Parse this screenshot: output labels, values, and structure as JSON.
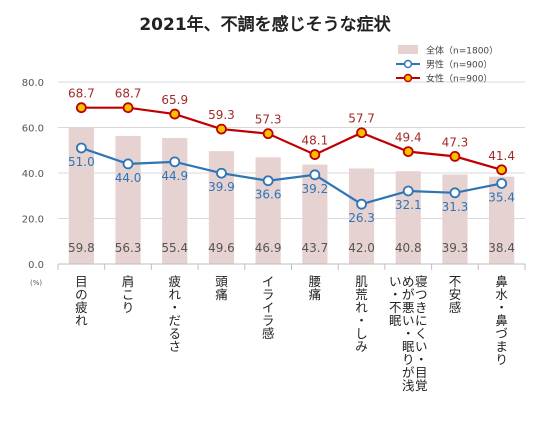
{
  "chart_data": {
    "type": "bar",
    "title": "2021年、不調を感じそうな症状",
    "unit_label": "(%)",
    "ylim": [
      0,
      80
    ],
    "yticks": [
      "0.0",
      "20.0",
      "40.0",
      "60.0",
      "80.0"
    ],
    "grid": true,
    "legend_position": "top-right",
    "categories": [
      "目の疲れ",
      "肩こり",
      "疲れ・だるさ",
      "頭痛",
      "イライラ感",
      "腰痛",
      "肌荒れ・しみ",
      "寝つきにくい・目覚めが悪い・眠りが浅い・不眠",
      "不安感",
      "鼻水・鼻づまり"
    ],
    "series": [
      {
        "name": "全体（n=1800）",
        "kind": "bar",
        "color": "#e6d3d1",
        "values": [
          59.8,
          56.3,
          55.4,
          49.6,
          46.9,
          43.7,
          42.0,
          40.8,
          39.3,
          38.4
        ],
        "labels": [
          "59.8",
          "56.3",
          "55.4",
          "49.6",
          "46.9",
          "43.7",
          "42.0",
          "40.8",
          "39.3",
          "38.4"
        ]
      },
      {
        "name": "男性（n=900）",
        "kind": "line",
        "color": "#2e75b6",
        "values": [
          51.0,
          44.0,
          44.9,
          39.9,
          36.6,
          39.2,
          26.3,
          32.1,
          31.3,
          35.4
        ],
        "labels": [
          "51.0",
          "44.0",
          "44.9",
          "39.9",
          "36.6",
          "39.2",
          "26.3",
          "32.1",
          "31.3",
          "35.4"
        ]
      },
      {
        "name": "女性（n=900）",
        "kind": "line",
        "color": "#c00000",
        "values": [
          68.7,
          68.7,
          65.9,
          59.3,
          57.3,
          48.1,
          57.7,
          49.4,
          47.3,
          41.4
        ],
        "labels": [
          "68.7",
          "68.7",
          "65.9",
          "59.3",
          "57.3",
          "48.1",
          "57.7",
          "49.4",
          "47.3",
          "41.4"
        ]
      }
    ]
  }
}
